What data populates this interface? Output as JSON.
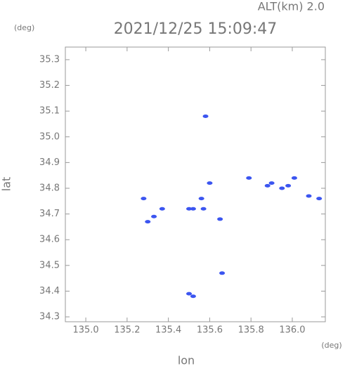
{
  "chart_data": {
    "type": "scatter",
    "title": "2021/12/25 15:09:47",
    "annotation": "ALT(km) 2.0",
    "y_unit": "(deg)",
    "x_unit": "(deg)",
    "x_label": "lon",
    "y_label": "lat",
    "color": "#3b55f0",
    "x": [
      135.28,
      135.37,
      135.3,
      135.33,
      135.5,
      135.52,
      135.56,
      135.57,
      135.6,
      135.65,
      135.66,
      135.5,
      135.52,
      135.58,
      135.79,
      135.88,
      135.9,
      135.95,
      135.98,
      136.01,
      136.08,
      136.13
    ],
    "values": [
      34.76,
      34.72,
      34.67,
      34.69,
      34.72,
      34.72,
      34.76,
      34.72,
      34.82,
      34.68,
      34.47,
      34.39,
      34.38,
      35.08,
      34.84,
      34.81,
      34.82,
      34.8,
      34.81,
      34.84,
      34.77,
      34.76
    ],
    "xlim": [
      134.901,
      136.16
    ],
    "ylim": [
      34.281,
      35.349
    ],
    "xticks": [
      {
        "value": 135.0,
        "label": "135.0"
      },
      135.2,
      135.4,
      135.6,
      135.8,
      {
        "value": 136.0,
        "label": "136.0"
      }
    ],
    "yticks": [
      34.3,
      34.4,
      34.5,
      34.6,
      34.7,
      34.8,
      34.9,
      {
        "value": 35.0,
        "label": "35.0"
      },
      35.1,
      35.2,
      35.3
    ]
  }
}
